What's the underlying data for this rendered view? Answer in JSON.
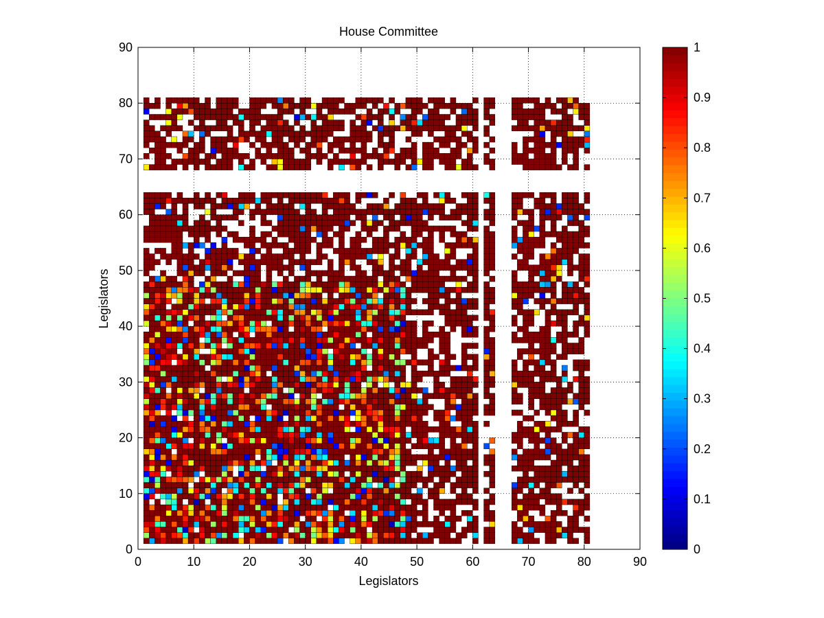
{
  "chart_data": {
    "type": "heatmap",
    "title": "House Committee",
    "xlabel": "Legislators",
    "ylabel": "Legislators",
    "xlim": [
      0,
      90
    ],
    "ylim": [
      0,
      90
    ],
    "xticks": [
      0,
      10,
      20,
      30,
      40,
      50,
      60,
      70,
      80,
      90
    ],
    "yticks": [
      0,
      10,
      20,
      30,
      40,
      50,
      60,
      70,
      80,
      90
    ],
    "grid": true,
    "grid_style": "dotted",
    "matrix_size": 80,
    "matrix_extent": [
      1,
      81
    ],
    "colormap": "jet",
    "missing_color": "#ffffff",
    "colorbar": {
      "position": "right",
      "range": [
        0,
        1
      ],
      "ticks": [
        "0",
        "0.1",
        "0.2",
        "0.3",
        "0.4",
        "0.5",
        "0.6",
        "0.7",
        "0.8",
        "0.9",
        "1"
      ]
    },
    "structure": {
      "empty_rows": [
        64,
        65,
        66,
        67
      ],
      "empty_columns": [
        61,
        64,
        65,
        66
      ],
      "low_agreement_block": {
        "rows": [
          1,
          47
        ],
        "columns": [
          1,
          47
        ]
      },
      "high_agreement_default": 1.0
    }
  }
}
